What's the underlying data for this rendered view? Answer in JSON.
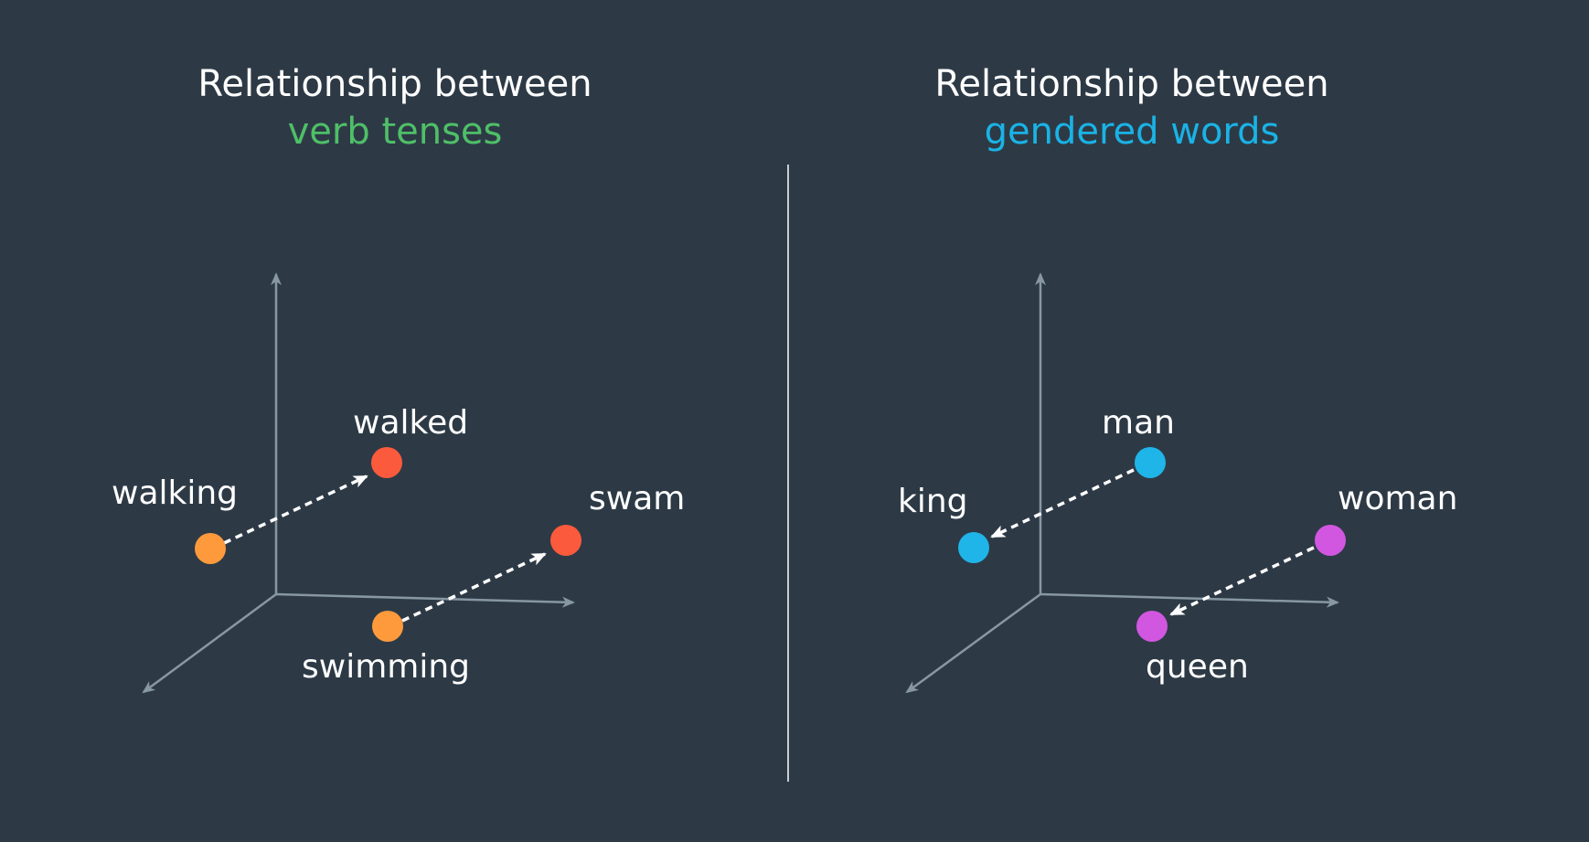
{
  "colors": {
    "background": "#2d3a46",
    "axis": "#8797a3",
    "divider": "#c7cdd2",
    "arrow": "#ffffff",
    "green_heading": "#4fbf67",
    "blue_heading": "#1ab3e6",
    "orange_point": "#ff9a3c",
    "red_point": "#fb5a3c",
    "blue_point": "#1fb5e8",
    "magenta_point": "#d257e0"
  },
  "left_panel": {
    "title_line1": "Relationship between",
    "title_line2": "verb tenses",
    "labels": {
      "walking": "walking",
      "walked": "walked",
      "swimming": "swimming",
      "swam": "swam"
    }
  },
  "right_panel": {
    "title_line1": "Relationship between",
    "title_line2": "gendered words",
    "labels": {
      "king": "king",
      "man": "man",
      "woman": "woman",
      "queen": "queen"
    }
  }
}
